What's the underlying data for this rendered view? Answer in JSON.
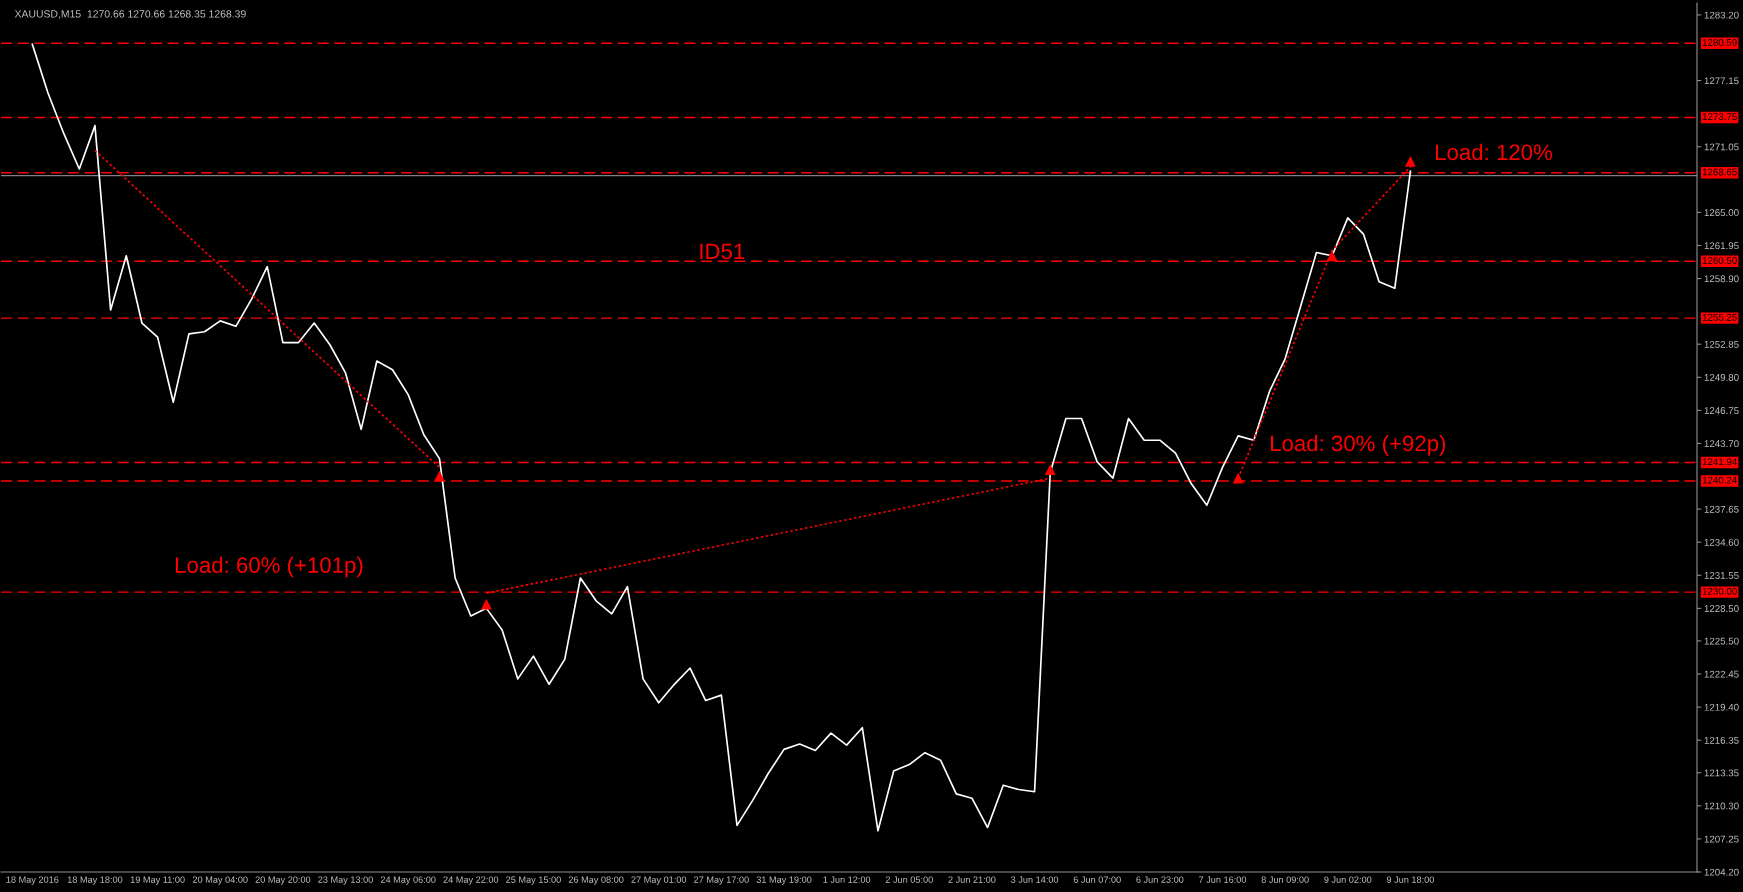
{
  "chart_data": {
    "type": "line",
    "title": "XAUUSD,M15  1270.66 1270.66 1268.35 1268.39",
    "categories": [
      "18 May 2016",
      null,
      null,
      null,
      "18 May 18:00",
      null,
      null,
      null,
      "19 May 11:00",
      null,
      null,
      null,
      "20 May 04:00",
      null,
      null,
      null,
      "20 May 20:00",
      null,
      null,
      null,
      "23 May 13:00",
      null,
      null,
      null,
      "24 May 06:00",
      null,
      null,
      null,
      "24 May 22:00",
      null,
      null,
      null,
      "25 May 15:00",
      null,
      null,
      null,
      "26 May 08:00",
      null,
      null,
      null,
      "27 May 01:00",
      null,
      null,
      null,
      "27 May 17:00",
      null,
      null,
      null,
      "31 May 19:00",
      null,
      null,
      null,
      "1 Jun 12:00",
      null,
      null,
      null,
      "2 Jun 05:00",
      null,
      null,
      null,
      "2 Jun 21:00",
      null,
      null,
      null,
      "3 Jun 14:00",
      null,
      null,
      null,
      "6 Jun 07:00",
      null,
      null,
      null,
      "6 Jun 23:00",
      null,
      null,
      null,
      "7 Jun 16:00",
      null,
      null,
      null,
      "8 Jun 09:00",
      null,
      null,
      null,
      "9 Jun 02:00",
      null,
      null,
      null,
      "9 Jun 18:00",
      null,
      null,
      null,
      null,
      null,
      null,
      null,
      null,
      null,
      null,
      null,
      null,
      null,
      null,
      null,
      null,
      null,
      null
    ],
    "ylim": [
      1204.2,
      1284.3
    ],
    "yticks": [
      {
        "value": 1283.2,
        "label": "1283.20"
      },
      {
        "value": 1277.15,
        "label": "1277.15"
      },
      {
        "value": 1271.05,
        "label": "1271.05"
      },
      {
        "value": 1265.0,
        "label": "1265.00"
      },
      {
        "value": 1261.95,
        "label": "1261.95"
      },
      {
        "value": 1258.9,
        "label": "1258.90"
      },
      {
        "value": 1252.85,
        "label": "1252.85"
      },
      {
        "value": 1249.8,
        "label": "1249.80"
      },
      {
        "value": 1246.75,
        "label": "1246.75"
      },
      {
        "value": 1243.7,
        "label": "1243.70"
      },
      {
        "value": 1237.65,
        "label": "1237.65"
      },
      {
        "value": 1234.6,
        "label": "1234.60"
      },
      {
        "value": 1231.55,
        "label": "1231.55"
      },
      {
        "value": 1228.5,
        "label": "1228.50"
      },
      {
        "value": 1225.5,
        "label": "1225.50"
      },
      {
        "value": 1222.45,
        "label": "1222.45"
      },
      {
        "value": 1219.4,
        "label": "1219.40"
      },
      {
        "value": 1216.35,
        "label": "1216.35"
      },
      {
        "value": 1213.35,
        "label": "1213.35"
      },
      {
        "value": 1210.3,
        "label": "1210.30"
      },
      {
        "value": 1207.25,
        "label": "1207.25"
      },
      {
        "value": 1204.2,
        "label": "1204.20"
      }
    ],
    "legend": false,
    "series": [
      {
        "color": "#ffffff",
        "line_style": "solid",
        "values": [
          1280.5,
          1276.0,
          1272.3,
          1269.0,
          1273.0,
          1256.0,
          1261.0,
          1254.8,
          1253.5,
          1247.5,
          1253.8,
          1254.0,
          1255.0,
          1254.5,
          1257.0,
          1260.0,
          1253.0,
          1253.0,
          1254.8,
          1252.8,
          1250.2,
          1245.0,
          1251.3,
          1250.5,
          1248.2,
          1244.5,
          1242.3,
          1231.3,
          1227.8,
          1228.5,
          1226.5,
          1222.0,
          1224.1,
          1221.5,
          1223.8,
          1231.3,
          1229.2,
          1228.0,
          1230.5,
          1222.0,
          1219.8,
          1221.5,
          1223.0,
          1220.0,
          1220.5,
          1208.5,
          1210.8,
          1213.3,
          1215.5,
          1216.0,
          1215.4,
          1217.0,
          1215.9,
          1217.5,
          1208.0,
          1213.5,
          1214.1,
          1215.2,
          1214.5,
          1211.4,
          1211.0,
          1208.3,
          1212.2,
          1211.8,
          1211.6,
          1241.0,
          1246.0,
          1246.0,
          1242.0,
          1240.5,
          1246.0,
          1244.0,
          1244.0,
          1242.8,
          1240.0,
          1238.0,
          1241.5,
          1244.4,
          1244.0,
          1248.5,
          1251.5,
          1256.4,
          1261.3,
          1261.0,
          1264.5,
          1263.0,
          1258.6,
          1258.0,
          1268.8,
          null,
          null,
          null,
          null,
          null,
          null,
          null,
          null,
          null,
          null,
          null,
          null,
          null,
          null,
          null,
          null,
          null,
          null
        ]
      },
      {
        "type": "line",
        "color": "#ff0000",
        "line_style": "dotted",
        "values": [
          null,
          null,
          null,
          null,
          1270.7,
          null,
          null,
          null,
          null,
          null,
          null,
          null,
          null,
          null,
          null,
          null,
          null,
          null,
          null,
          null,
          null,
          null,
          null,
          null,
          null,
          null,
          1241.5,
          null,
          null,
          null,
          null,
          null,
          null,
          null,
          null,
          null,
          null,
          null,
          null,
          null,
          null,
          null,
          null,
          null,
          null,
          null,
          null,
          null,
          null,
          null,
          null,
          null,
          null,
          null,
          null,
          null,
          null,
          null,
          null,
          null,
          null,
          null,
          null,
          null,
          null,
          null,
          null,
          null,
          null,
          null,
          null,
          null,
          null,
          null,
          null,
          null,
          null,
          null,
          null,
          null,
          null,
          null,
          null,
          null,
          null,
          null,
          null,
          null,
          null,
          null,
          null,
          null,
          null,
          null,
          null,
          null,
          null,
          null,
          null,
          null,
          null,
          null,
          null,
          null,
          null,
          null,
          null
        ]
      },
      {
        "type": "line",
        "color": "#ff0000",
        "line_style": "dotted",
        "values": [
          null,
          null,
          null,
          null,
          null,
          null,
          null,
          null,
          null,
          null,
          null,
          null,
          null,
          null,
          null,
          null,
          null,
          null,
          null,
          null,
          null,
          null,
          null,
          null,
          null,
          null,
          null,
          null,
          null,
          1229.9,
          null,
          null,
          null,
          null,
          null,
          null,
          null,
          null,
          null,
          null,
          null,
          null,
          null,
          null,
          null,
          null,
          null,
          null,
          null,
          null,
          null,
          null,
          null,
          null,
          null,
          null,
          null,
          null,
          null,
          null,
          null,
          null,
          null,
          null,
          null,
          1240.5,
          null,
          null,
          null,
          null,
          null,
          null,
          null,
          null,
          null,
          null,
          null,
          null,
          null,
          null,
          null,
          null,
          null,
          null,
          null,
          null,
          null,
          null,
          null,
          null,
          null,
          null,
          null,
          null,
          null,
          null,
          null,
          null,
          null,
          null,
          null,
          null,
          null,
          null,
          null,
          null,
          null
        ]
      },
      {
        "type": "line",
        "color": "#ff0000",
        "line_style": "dotted",
        "values": [
          null,
          null,
          null,
          null,
          null,
          null,
          null,
          null,
          null,
          null,
          null,
          null,
          null,
          null,
          null,
          null,
          null,
          null,
          null,
          null,
          null,
          null,
          null,
          null,
          null,
          null,
          null,
          null,
          null,
          null,
          null,
          null,
          null,
          null,
          null,
          null,
          null,
          null,
          null,
          null,
          null,
          null,
          null,
          null,
          null,
          null,
          null,
          null,
          null,
          null,
          null,
          null,
          null,
          null,
          null,
          null,
          null,
          null,
          null,
          null,
          null,
          null,
          null,
          null,
          null,
          null,
          null,
          null,
          null,
          null,
          null,
          null,
          null,
          null,
          null,
          null,
          null,
          1240.5,
          null,
          null,
          null,
          null,
          null,
          1261.5,
          null,
          null,
          null,
          null,
          1269.2,
          null,
          null,
          null,
          null,
          null,
          null,
          null,
          null,
          null,
          null,
          null,
          null,
          null,
          null,
          null,
          null,
          null,
          null
        ]
      },
      {
        "type": "scatter",
        "color": "#ff0000",
        "marker": "triangle",
        "values": [
          null,
          null,
          null,
          null,
          null,
          null,
          null,
          null,
          null,
          null,
          null,
          null,
          null,
          null,
          null,
          null,
          null,
          null,
          null,
          null,
          null,
          null,
          null,
          null,
          null,
          null,
          1240.7,
          null,
          null,
          1228.9,
          null,
          null,
          null,
          null,
          null,
          null,
          null,
          null,
          null,
          null,
          null,
          null,
          null,
          null,
          null,
          null,
          null,
          null,
          null,
          null,
          null,
          null,
          null,
          null,
          null,
          null,
          null,
          null,
          null,
          null,
          null,
          null,
          null,
          null,
          null,
          1241.3,
          null,
          null,
          null,
          null,
          null,
          null,
          null,
          null,
          null,
          null,
          null,
          1240.5,
          null,
          null,
          null,
          null,
          null,
          1261.0,
          null,
          null,
          null,
          null,
          1269.7,
          null,
          null,
          null,
          null,
          null,
          null,
          null,
          null,
          null,
          null,
          null,
          null,
          null,
          null,
          null,
          null,
          null,
          null
        ]
      }
    ],
    "ref_lines": [
      {
        "axis": "y",
        "value": 1280.59,
        "label": "1280.59",
        "color": "#ff0000",
        "line_style": "dashed"
      },
      {
        "axis": "y",
        "value": 1273.75,
        "label": "1273.75",
        "color": "#ff0000",
        "line_style": "dashed"
      },
      {
        "axis": "y",
        "value": 1268.65,
        "label": "1268.65",
        "color": "#ff0000",
        "line_style": "dashed"
      },
      {
        "axis": "y",
        "value": 1268.39,
        "label": null,
        "color": "#808080",
        "line_style": "solid"
      },
      {
        "axis": "y",
        "value": 1260.5,
        "label": "1260.50",
        "color": "#ff0000",
        "line_style": "dashed"
      },
      {
        "axis": "y",
        "value": 1255.25,
        "label": "1255.25",
        "color": "#ff0000",
        "line_style": "dashed"
      },
      {
        "axis": "y",
        "value": 1241.94,
        "label": "1241.94",
        "color": "#ff0000",
        "line_style": "dashed"
      },
      {
        "axis": "y",
        "value": 1240.24,
        "label": "1240.24",
        "color": "#ff0000",
        "line_style": "dashed"
      },
      {
        "axis": "y",
        "value": 1230.0,
        "label": "1230.00",
        "color": "#ff0000",
        "line_style": "dashed"
      }
    ],
    "annotations": [
      "ID51",
      "Load: 60% (+101p)",
      "Load: 30% (+92p)",
      "Load: 120%"
    ]
  }
}
